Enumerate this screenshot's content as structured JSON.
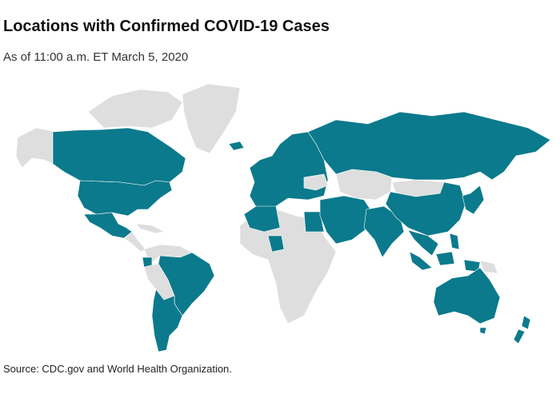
{
  "header": {
    "title": "Locations with Confirmed COVID-19 Cases",
    "subtitle": "As of 11:00 a.m. ET March 5, 2020"
  },
  "footer": {
    "source": "Source:  CDC.gov and World Health Organization."
  }
}
